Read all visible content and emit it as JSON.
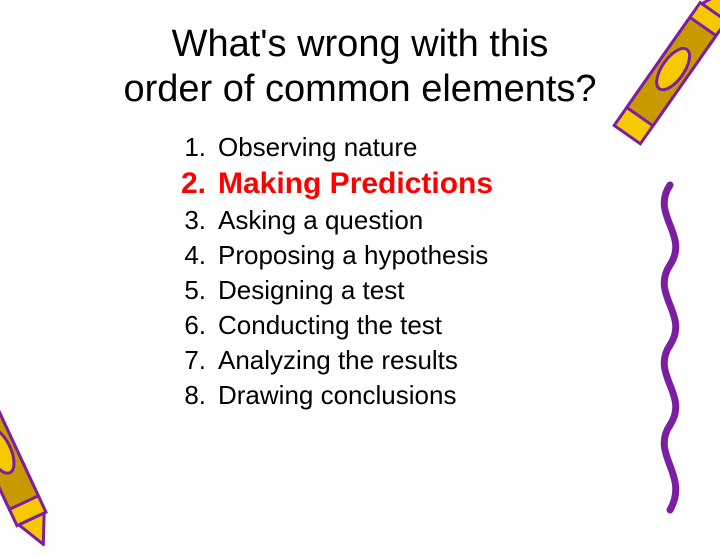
{
  "title_line1": "What's wrong with this",
  "title_line2": "order of common elements?",
  "list": {
    "items": [
      {
        "num": "1.",
        "text": "Observing nature",
        "highlight": false
      },
      {
        "num": "2.",
        "text": "Making Predictions",
        "highlight": true
      },
      {
        "num": "3.",
        "text": "Asking a question",
        "highlight": false
      },
      {
        "num": "4.",
        "text": "Proposing a hypothesis",
        "highlight": false
      },
      {
        "num": "5.",
        "text": "Designing a test",
        "highlight": false
      },
      {
        "num": "6.",
        "text": "Conducting the test",
        "highlight": false
      },
      {
        "num": "7.",
        "text": "Analyzing the results",
        "highlight": false
      },
      {
        "num": "8.",
        "text": "Drawing conclusions",
        "highlight": false
      }
    ]
  },
  "colors": {
    "highlight": "#ff0000",
    "text": "#000000",
    "crayon_yellow_body": "#f5c800",
    "crayon_yellow_wrap": "#c89a00",
    "crayon_outline": "#7a1fa2",
    "squiggle": "#7a1fa2"
  }
}
